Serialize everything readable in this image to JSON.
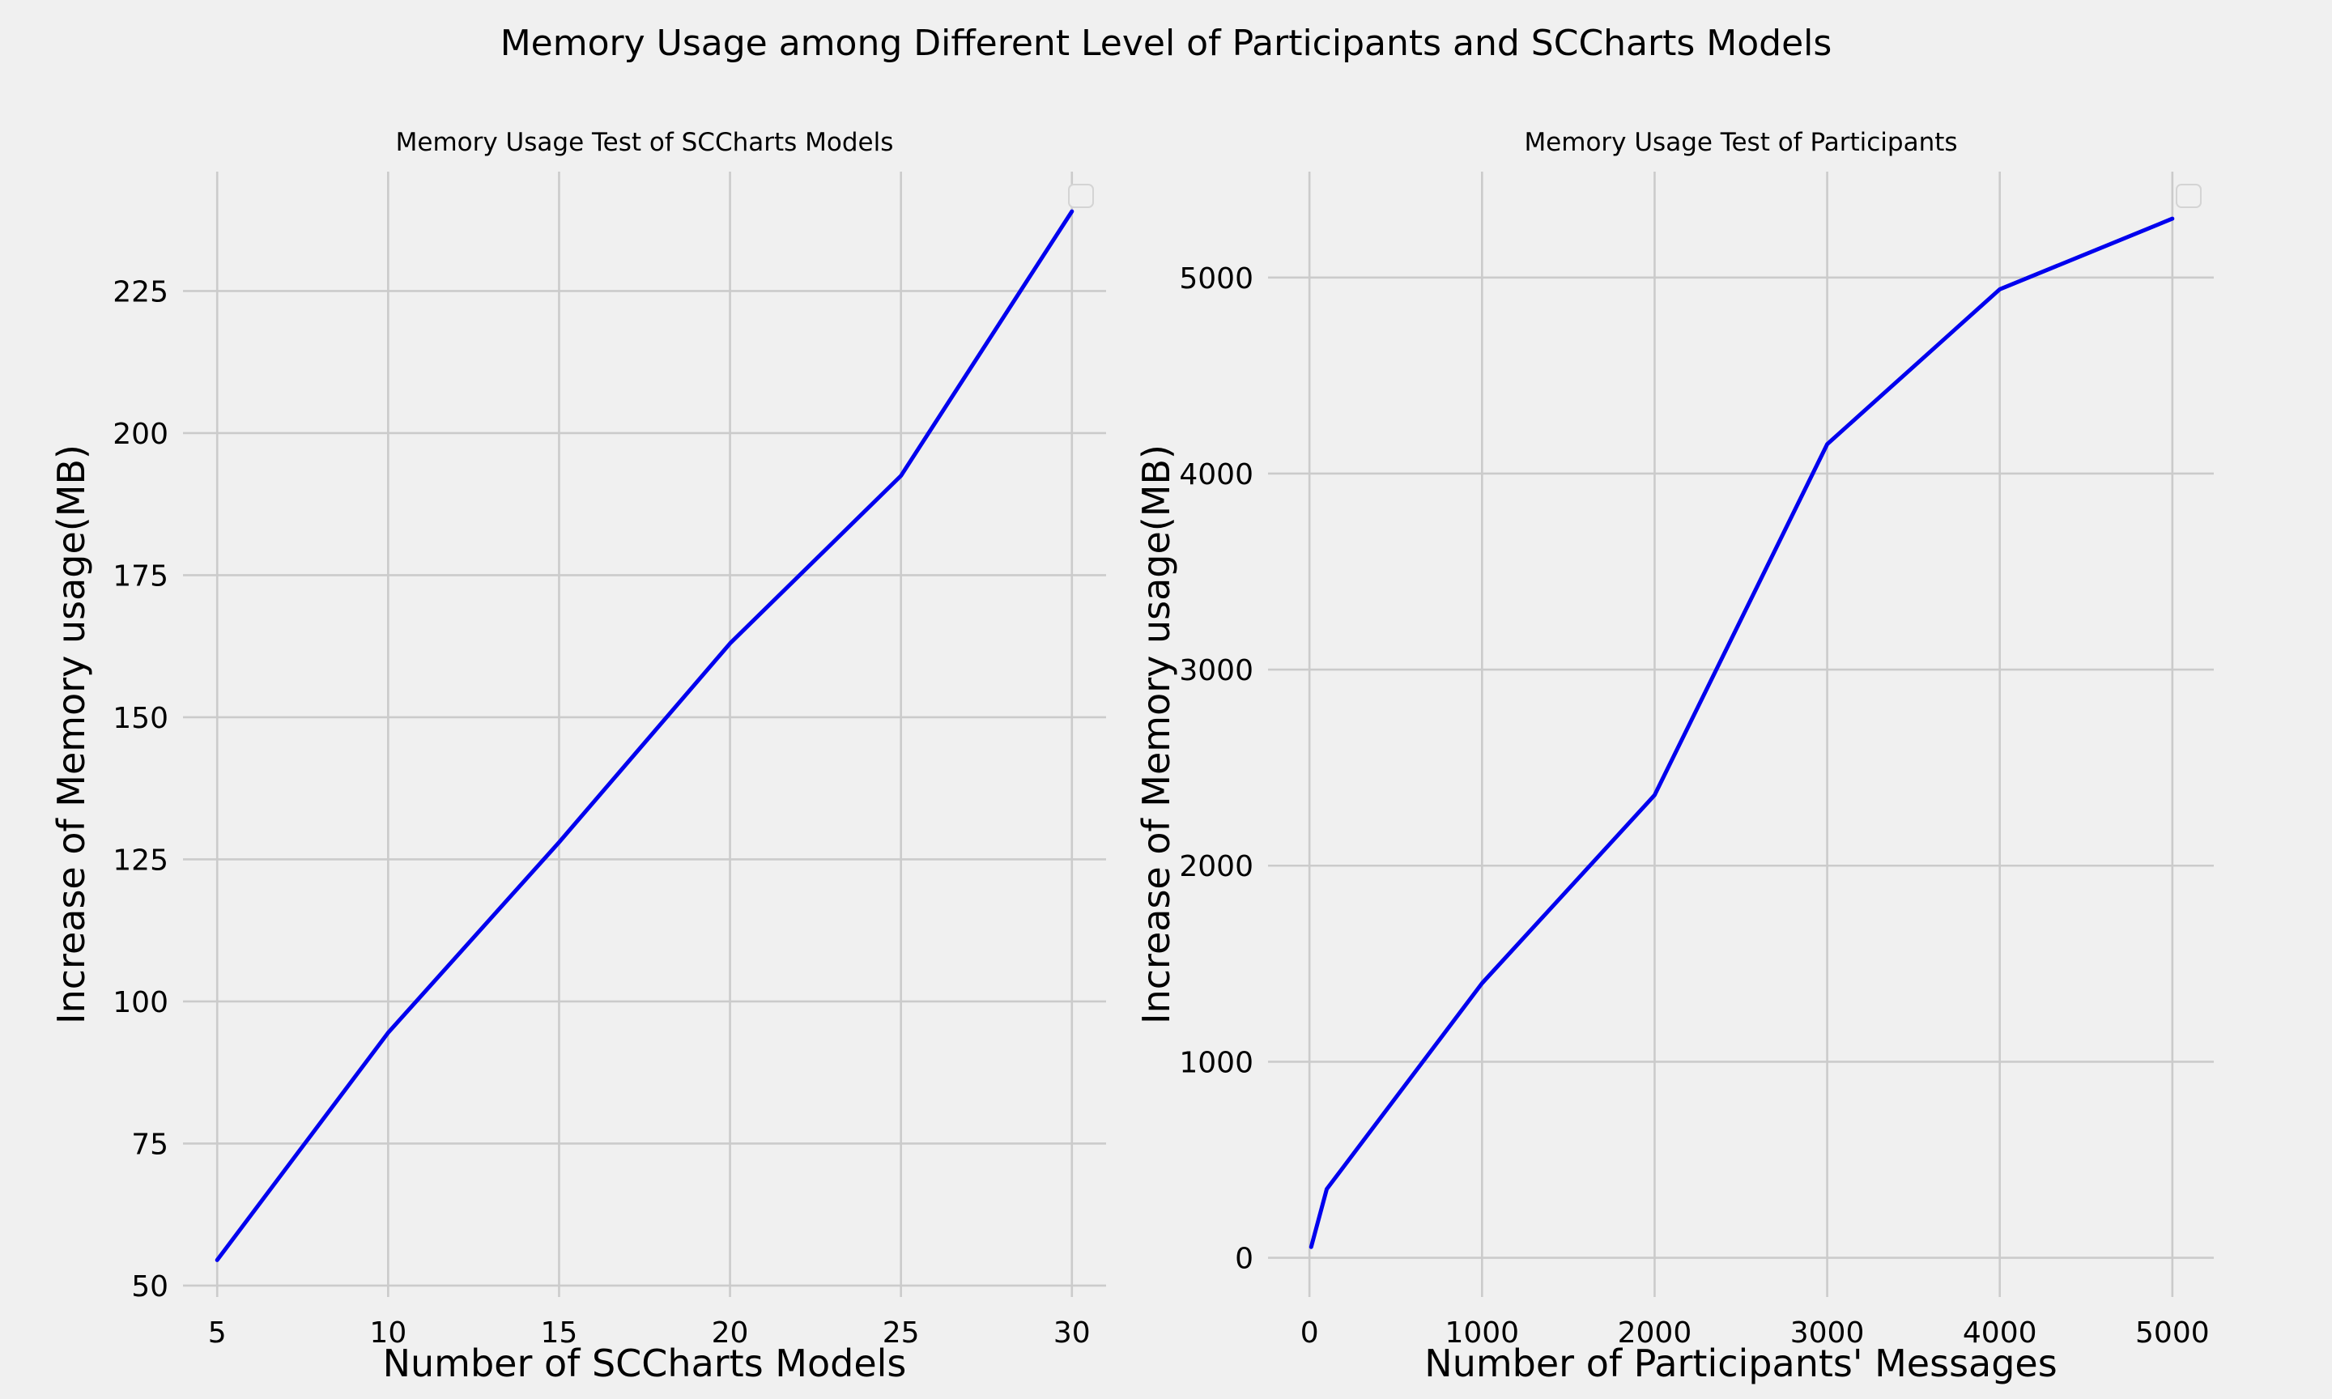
{
  "figure_title": "Memory Usage among Different Level of Participants and SCCharts Models",
  "chart_data": [
    {
      "type": "line",
      "title": "Memory Usage Test of SCCharts Models",
      "xlabel": "Number of SCCharts Models",
      "ylabel": "Increase of Memory usage(MB)",
      "x": [
        5,
        10,
        15,
        20,
        25,
        30
      ],
      "series": [
        {
          "values": [
            54.5,
            94.5,
            128,
            163,
            192.5,
            239
          ],
          "color": "#0000ee"
        }
      ],
      "xlim": [
        4,
        31
      ],
      "ylim": [
        48,
        246
      ],
      "xticks": [
        5,
        10,
        15,
        20,
        25,
        30
      ],
      "yticks": [
        50,
        75,
        100,
        125,
        150,
        175,
        200,
        225
      ],
      "grid": true,
      "legend": "top-right (empty)"
    },
    {
      "type": "line",
      "title": "Memory Usage Test of Participants",
      "xlabel": "Number of Participants' Messages",
      "ylabel": "Increase of Memory usage(MB)",
      "x": [
        10,
        100,
        1000,
        2000,
        3000,
        4000,
        5000
      ],
      "series": [
        {
          "values": [
            55,
            350,
            1400,
            2360,
            4150,
            4940,
            5300
          ],
          "color": "#0000ee"
        }
      ],
      "xlim": [
        -240,
        5240
      ],
      "ylim": [
        -200,
        5540
      ],
      "xticks": [
        0,
        1000,
        2000,
        3000,
        4000,
        5000
      ],
      "yticks": [
        0,
        1000,
        2000,
        3000,
        4000,
        5000
      ],
      "grid": true,
      "legend": "top-right (empty)"
    }
  ]
}
